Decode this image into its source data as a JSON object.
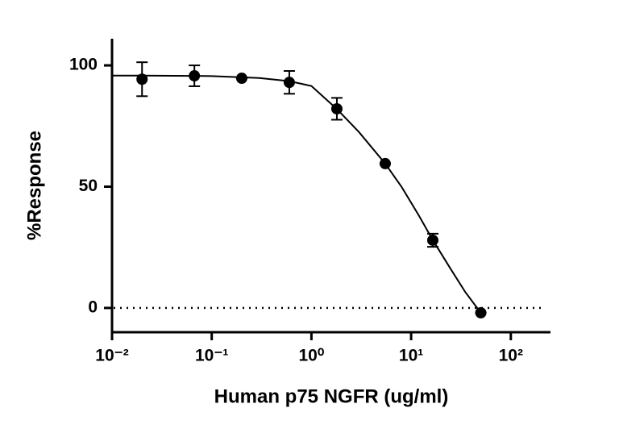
{
  "chart_data": {
    "type": "scatter",
    "x_label": "Human p75 NGFR (ug/ml)",
    "y_label": "%Response",
    "x_scale": "log",
    "x": [
      0.02,
      0.067,
      0.2,
      0.6,
      1.8,
      5.5,
      16.5,
      50
    ],
    "values": [
      94.3,
      95.7,
      94.7,
      93.0,
      82.1,
      59.5,
      27.9,
      -2.0
    ],
    "errors": [
      7.0,
      4.3,
      0,
      4.7,
      4.5,
      0,
      2.7,
      0
    ],
    "color": "#000000",
    "fit_curve": {
      "x": [
        0.01,
        0.02,
        0.1,
        0.3,
        0.6,
        1,
        1.8,
        3,
        5.5,
        8,
        12,
        16.5,
        25,
        35,
        50
      ],
      "values": [
        95.8,
        95.8,
        95.6,
        94.8,
        93.5,
        91.5,
        82,
        72.5,
        59.5,
        50,
        38,
        28,
        16,
        6.5,
        -2
      ]
    },
    "reference_line": 0,
    "xlim": [
      0.01,
      250
    ],
    "ylim": [
      -10,
      111
    ],
    "xticks": [
      {
        "value": 0.01,
        "label": "10⁻²"
      },
      {
        "value": 0.1,
        "label": "10⁻¹"
      },
      {
        "value": 1,
        "label": "10⁰"
      },
      {
        "value": 10,
        "label": "10¹"
      },
      {
        "value": 100,
        "label": "10²"
      }
    ],
    "yticks": [
      0,
      50,
      100
    ]
  }
}
